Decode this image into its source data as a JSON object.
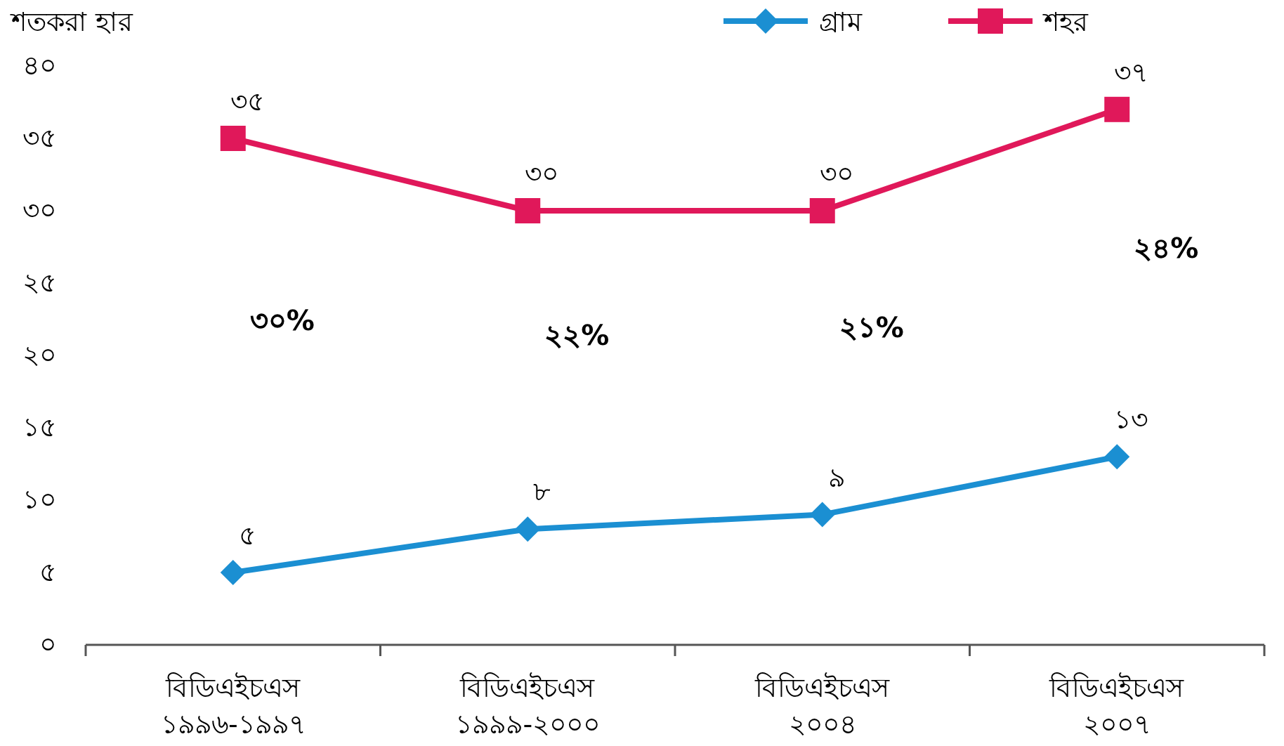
{
  "chart_data": {
    "type": "line",
    "ylabel": "শতকরা হার",
    "categories": [
      "বিডিএইচএস ১৯৯৬-১৯৯৭",
      "বিডিএইচএস ১৯৯৯-২০০০",
      "বিডিএইচএস ২০০৪",
      "বিডিএইচএস ২০০৭"
    ],
    "series": [
      {
        "name": "গ্রাম",
        "color": "#1b8fd2",
        "marker": "diamond",
        "values": [
          5,
          8,
          9,
          13
        ],
        "value_labels": [
          "৫",
          "৮",
          "৯",
          "১৩"
        ]
      },
      {
        "name": "শহর",
        "color": "#e0185a",
        "marker": "square",
        "values": [
          35,
          30,
          30,
          37
        ],
        "value_labels": [
          "৩৫",
          "৩০",
          "৩০",
          "৩৭"
        ]
      }
    ],
    "ylim": [
      0,
      40
    ],
    "yticks": [
      {
        "value": 0,
        "label": "০"
      },
      {
        "value": 5,
        "label": "৫"
      },
      {
        "value": 10,
        "label": "১০"
      },
      {
        "value": 15,
        "label": "১৫"
      },
      {
        "value": 20,
        "label": "২০"
      },
      {
        "value": 25,
        "label": "২৫"
      },
      {
        "value": 30,
        "label": "৩০"
      },
      {
        "value": 35,
        "label": "৩৫"
      },
      {
        "value": 40,
        "label": "৪০"
      }
    ],
    "annotations": [
      "৩০%",
      "২২%",
      "২১%",
      "২৪%"
    ],
    "legend": "top right",
    "line_style": "solid",
    "grid": false
  }
}
